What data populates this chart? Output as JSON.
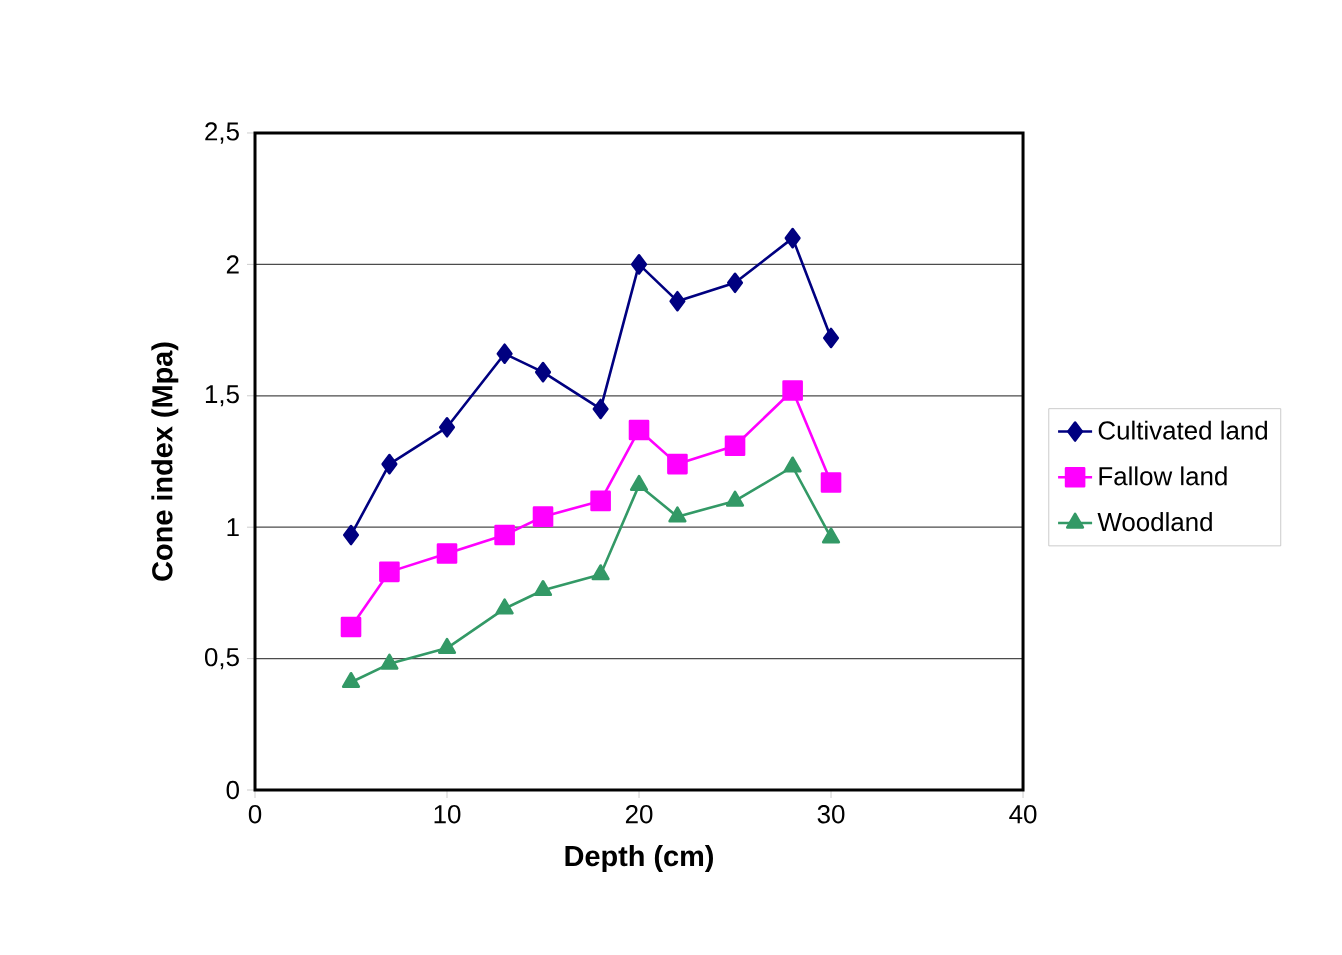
{
  "chart_data": {
    "type": "line",
    "xlabel": "Depth (cm)",
    "ylabel": "Cone index (Mpa)",
    "x": [
      5,
      7,
      10,
      13,
      15,
      18,
      20,
      22,
      25,
      28,
      30
    ],
    "series": [
      {
        "name": "Cultivated land",
        "color": "#000080",
        "marker": "diamond",
        "values": [
          0.97,
          1.24,
          1.38,
          1.66,
          1.59,
          1.45,
          2.0,
          1.86,
          1.93,
          2.1,
          1.72
        ]
      },
      {
        "name": "Fallow land",
        "color": "#ff00ff",
        "marker": "square",
        "values": [
          0.62,
          0.83,
          0.9,
          0.97,
          1.04,
          1.1,
          1.37,
          1.24,
          1.31,
          1.52,
          1.17
        ]
      },
      {
        "name": "Woodland",
        "color": "#339966",
        "marker": "triangle",
        "values": [
          0.41,
          0.48,
          0.54,
          0.69,
          0.76,
          0.82,
          1.16,
          1.04,
          1.1,
          1.23,
          0.96
        ]
      }
    ],
    "xlim": [
      0,
      40
    ],
    "ylim": [
      0,
      2.5
    ],
    "xticks": [
      0,
      10,
      20,
      30,
      40
    ],
    "yticks": [
      0,
      {
        "value": 0.5,
        "label": "0,5"
      },
      1,
      {
        "value": 1.5,
        "label": "1,5"
      },
      2,
      {
        "value": 2.5,
        "label": "2,5"
      }
    ],
    "grid": "y",
    "legend": "right"
  }
}
